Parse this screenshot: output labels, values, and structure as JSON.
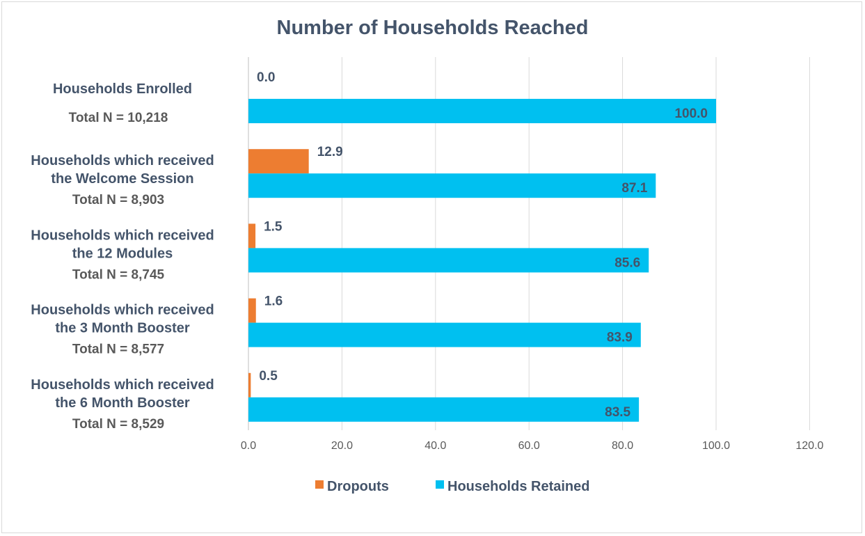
{
  "chart_data": {
    "type": "bar",
    "orientation": "horizontal",
    "title": "Number of Households Reached",
    "categories": [
      {
        "lines": [
          "Households Enrolled"
        ],
        "total": "Total N = 10,218"
      },
      {
        "lines": [
          "Households which received",
          "the Welcome Session"
        ],
        "total": "Total N = 8,903"
      },
      {
        "lines": [
          "Households  which received",
          "the 12 Modules"
        ],
        "total": "Total N = 8,745"
      },
      {
        "lines": [
          "Households  which received",
          "the 3 Month Booster"
        ],
        "total": "Total N = 8,577"
      },
      {
        "lines": [
          "Households  which received",
          "the 6 Month Booster"
        ],
        "total": "Total N = 8,529"
      }
    ],
    "series": [
      {
        "name": "Dropouts",
        "color": "#ed7d31",
        "values": [
          0.0,
          12.9,
          1.5,
          1.6,
          0.5
        ],
        "labels": [
          "0.0",
          "12.9",
          "1.5",
          "1.6",
          "0.5"
        ]
      },
      {
        "name": "Households Retained",
        "color": "#00c0f0",
        "values": [
          100.0,
          87.1,
          85.6,
          83.9,
          83.5
        ],
        "labels": [
          "100.0",
          "87.1",
          "85.6",
          "83.9",
          "83.5"
        ]
      }
    ],
    "xlim": [
      0,
      120
    ],
    "xticks": [
      "0.0",
      "20.0",
      "40.0",
      "60.0",
      "80.0",
      "100.0",
      "120.0"
    ],
    "grid": true,
    "legend": "bottom"
  }
}
